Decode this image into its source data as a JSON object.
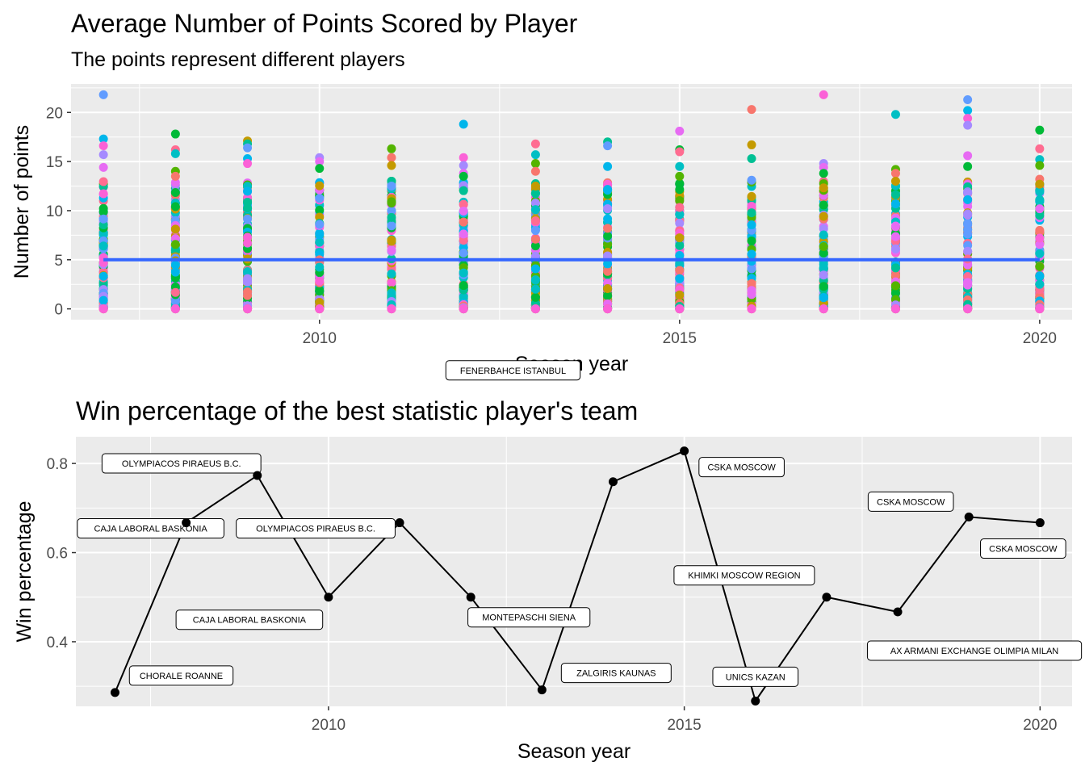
{
  "chart_data": [
    {
      "type": "scatter",
      "title": "Average Number of Points Scored by Player",
      "subtitle": "The points represent different players",
      "xlabel": "Season year",
      "ylabel": "Number of points",
      "xlim": [
        2006.55,
        2020.45
      ],
      "ylim": [
        -1.1,
        22.9
      ],
      "x_ticks": [
        2010,
        2015,
        2020
      ],
      "x_tick_labels": [
        "2010",
        "2015",
        "2020"
      ],
      "y_ticks": [
        0,
        5,
        10,
        15,
        20
      ],
      "y_tick_labels": [
        "0",
        "5",
        "10",
        "15",
        "20"
      ],
      "grid": true,
      "legend": "none",
      "seasons": [
        2007,
        2008,
        2009,
        2010,
        2011,
        2012,
        2013,
        2014,
        2015,
        2016,
        2017,
        2018,
        2019,
        2020
      ],
      "trend_line": {
        "color": "#3366ff",
        "x": [
          2007,
          2020
        ],
        "y": [
          5.0,
          5.0
        ]
      },
      "top_scores": [
        {
          "x": 2007,
          "values": [
            21.8,
            17.3,
            16.6,
            15.7,
            14.4
          ]
        },
        {
          "x": 2008,
          "values": [
            17.8,
            16.2,
            15.8,
            14.0,
            13.5
          ]
        },
        {
          "x": 2009,
          "values": [
            17.1,
            16.8,
            16.4,
            15.3,
            14.8
          ]
        },
        {
          "x": 2010,
          "values": [
            15.4,
            15.0,
            14.3
          ]
        },
        {
          "x": 2011,
          "values": [
            16.3,
            15.4,
            14.6,
            13.0,
            12.5
          ]
        },
        {
          "x": 2012,
          "values": [
            18.8,
            15.4,
            14.6,
            13.8,
            13.5
          ]
        },
        {
          "x": 2013,
          "values": [
            16.8,
            15.7,
            14.8,
            14.0,
            12.5
          ]
        },
        {
          "x": 2014,
          "values": [
            17.0,
            16.6,
            14.5
          ]
        },
        {
          "x": 2015,
          "values": [
            18.1,
            16.2,
            16.0,
            14.5,
            13.5
          ]
        },
        {
          "x": 2016,
          "values": [
            20.3,
            16.7,
            15.3,
            13.1
          ]
        },
        {
          "x": 2017,
          "values": [
            21.8,
            14.8,
            14.4,
            13.8
          ]
        },
        {
          "x": 2018,
          "values": [
            19.8,
            14.2,
            13.8,
            13.0
          ]
        },
        {
          "x": 2019,
          "values": [
            21.3,
            20.2,
            19.4,
            18.7,
            15.6,
            14.5
          ]
        },
        {
          "x": 2020,
          "values": [
            18.2,
            16.3,
            15.2,
            14.6,
            13.2,
            12.7
          ]
        }
      ],
      "palette": [
        "#f8766d",
        "#fb61d7",
        "#00bfc4",
        "#619cff",
        "#00ba38",
        "#c49a00",
        "#a58aff",
        "#53b400",
        "#00b6eb",
        "#ff6c91",
        "#00c094",
        "#e76bf3"
      ]
    },
    {
      "type": "line",
      "title": "Win percentage of the best statistic player's team",
      "xlabel": "Season year",
      "ylabel": "Win percentage",
      "xlim": [
        2006.45,
        2020.45
      ],
      "ylim": [
        0.255,
        0.86
      ],
      "x_ticks": [
        2010,
        2015,
        2020
      ],
      "x_tick_labels": [
        "2010",
        "2015",
        "2020"
      ],
      "y_ticks": [
        0.4,
        0.6,
        0.8
      ],
      "y_tick_labels": [
        "0.4",
        "0.6",
        "0.8"
      ],
      "grid": true,
      "legend": "none",
      "points": [
        {
          "x": 2007,
          "y": 0.286,
          "team": "CHORALE ROANNE"
        },
        {
          "x": 2008,
          "y": 0.667,
          "team": "CAJA LABORAL BASKONIA"
        },
        {
          "x": 2009,
          "y": 0.773,
          "team": "OLYMPIACOS PIRAEUS B.C."
        },
        {
          "x": 2010,
          "y": 0.5,
          "team": "CAJA LABORAL BASKONIA"
        },
        {
          "x": 2011,
          "y": 0.667,
          "team": "OLYMPIACOS PIRAEUS B.C."
        },
        {
          "x": 2012,
          "y": 0.5,
          "team": "MONTEPASCHI SIENA"
        },
        {
          "x": 2013,
          "y": 0.292,
          "team": "ZALGIRIS KAUNAS"
        },
        {
          "x": 2014,
          "y": 0.759,
          "team": "FENERBAHCE ISTANBUL"
        },
        {
          "x": 2015,
          "y": 0.828,
          "team": "CSKA MOSCOW"
        },
        {
          "x": 2016,
          "y": 0.267,
          "team": "UNICS KAZAN"
        },
        {
          "x": 2017,
          "y": 0.5,
          "team": "KHIMKI MOSCOW REGION"
        },
        {
          "x": 2018,
          "y": 0.467,
          "team": "AX ARMANI EXCHANGE OLIMPIA MILAN"
        },
        {
          "x": 2019,
          "y": 0.68,
          "team": "CSKA MOSCOW"
        },
        {
          "x": 2020,
          "y": 0.667,
          "team": "CSKA MOSCOW"
        }
      ]
    }
  ]
}
